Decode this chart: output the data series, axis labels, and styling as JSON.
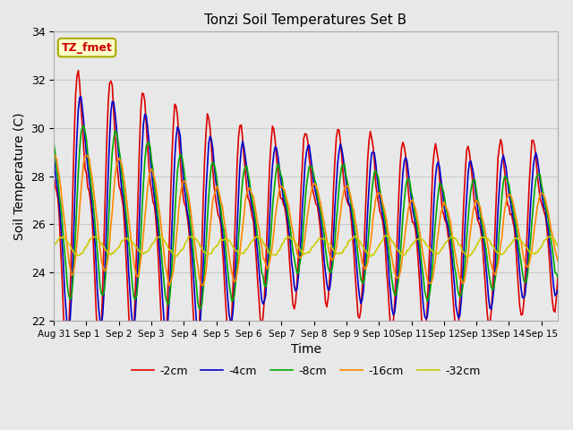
{
  "title": "Tonzi Soil Temperatures Set B",
  "xlabel": "Time",
  "ylabel": "Soil Temperature (C)",
  "ylim": [
    22,
    34
  ],
  "xlim_start": 0,
  "xlim_end": 15.5,
  "annotation_text": "TZ_fmet",
  "annotation_color": "#cc0000",
  "annotation_bg": "#ffffcc",
  "annotation_border": "#aaaa00",
  "series_colors": [
    "#dd0000",
    "#0000cc",
    "#00aa00",
    "#ff8800",
    "#cccc00"
  ],
  "series_labels": [
    "-2cm",
    "-4cm",
    "-8cm",
    "-16cm",
    "-32cm"
  ],
  "bg_color": "#e8e8e8",
  "tick_labels": [
    "Aug 31",
    "Sep 1",
    "Sep 2",
    "Sep 3",
    "Sep 4",
    "Sep 5",
    "Sep 6",
    "Sep 7",
    "Sep 8",
    "Sep 9",
    "Sep 10",
    "Sep 11",
    "Sep 12",
    "Sep 13",
    "Sep 14",
    "Sep 15"
  ],
  "tick_positions": [
    0,
    1,
    2,
    3,
    4,
    5,
    6,
    7,
    8,
    9,
    10,
    11,
    12,
    13,
    14,
    15
  ],
  "yticks": [
    22,
    24,
    26,
    28,
    30,
    32,
    34
  ],
  "line_width": 1.2,
  "grid_color": "#cccccc",
  "figwidth": 6.4,
  "figheight": 4.8,
  "dpi": 100
}
